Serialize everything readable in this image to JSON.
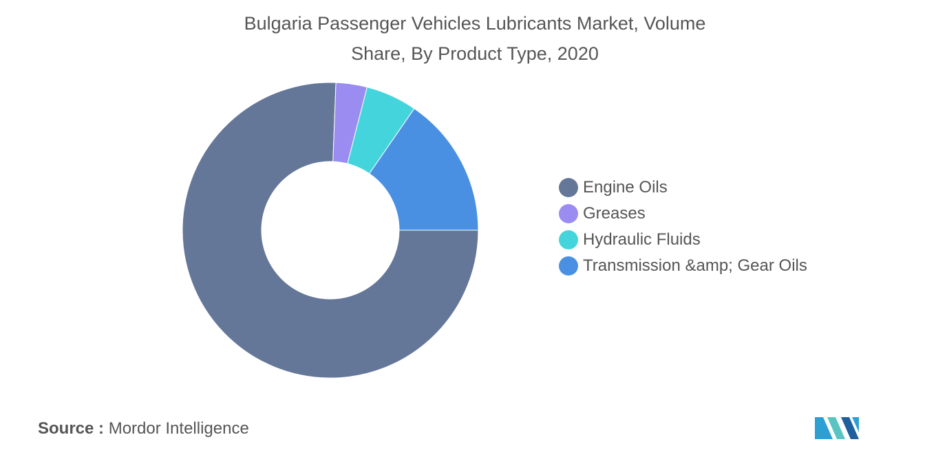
{
  "chart": {
    "title_line1": "Bulgaria Passenger Vehicles Lubricants Market, Volume",
    "title_line2": "Share, By Product Type, 2020"
  },
  "chart_data": {
    "type": "pie",
    "variant": "donut",
    "title": "Bulgaria Passenger Vehicles Lubricants Market, Volume Share, By Product Type, 2020",
    "categories": [
      "Engine Oils",
      "Greases",
      "Hydraulic Fluids",
      "Transmission &amp; Gear Oils"
    ],
    "values": [
      75.6,
      3.4,
      5.6,
      15.4
    ],
    "unit": "%",
    "colors": [
      "#657798",
      "#9b8cf2",
      "#44d5dc",
      "#4a90e2"
    ],
    "legend_position": "right"
  },
  "legend": {
    "items": [
      {
        "label": "Engine Oils",
        "color": "#657798"
      },
      {
        "label": "Greases",
        "color": "#9b8cf2"
      },
      {
        "label": "Hydraulic Fluids",
        "color": "#44d5dc"
      },
      {
        "label": "Transmission &amp; Gear Oils",
        "color": "#4a90e2"
      }
    ]
  },
  "footer": {
    "source_label": "Source :",
    "source_name": "Mordor Intelligence"
  },
  "logo": {
    "icon": "mordor-intelligence-logo",
    "colors": [
      "#2c9fd3",
      "#5ac5c0",
      "#1f5f9e"
    ]
  }
}
